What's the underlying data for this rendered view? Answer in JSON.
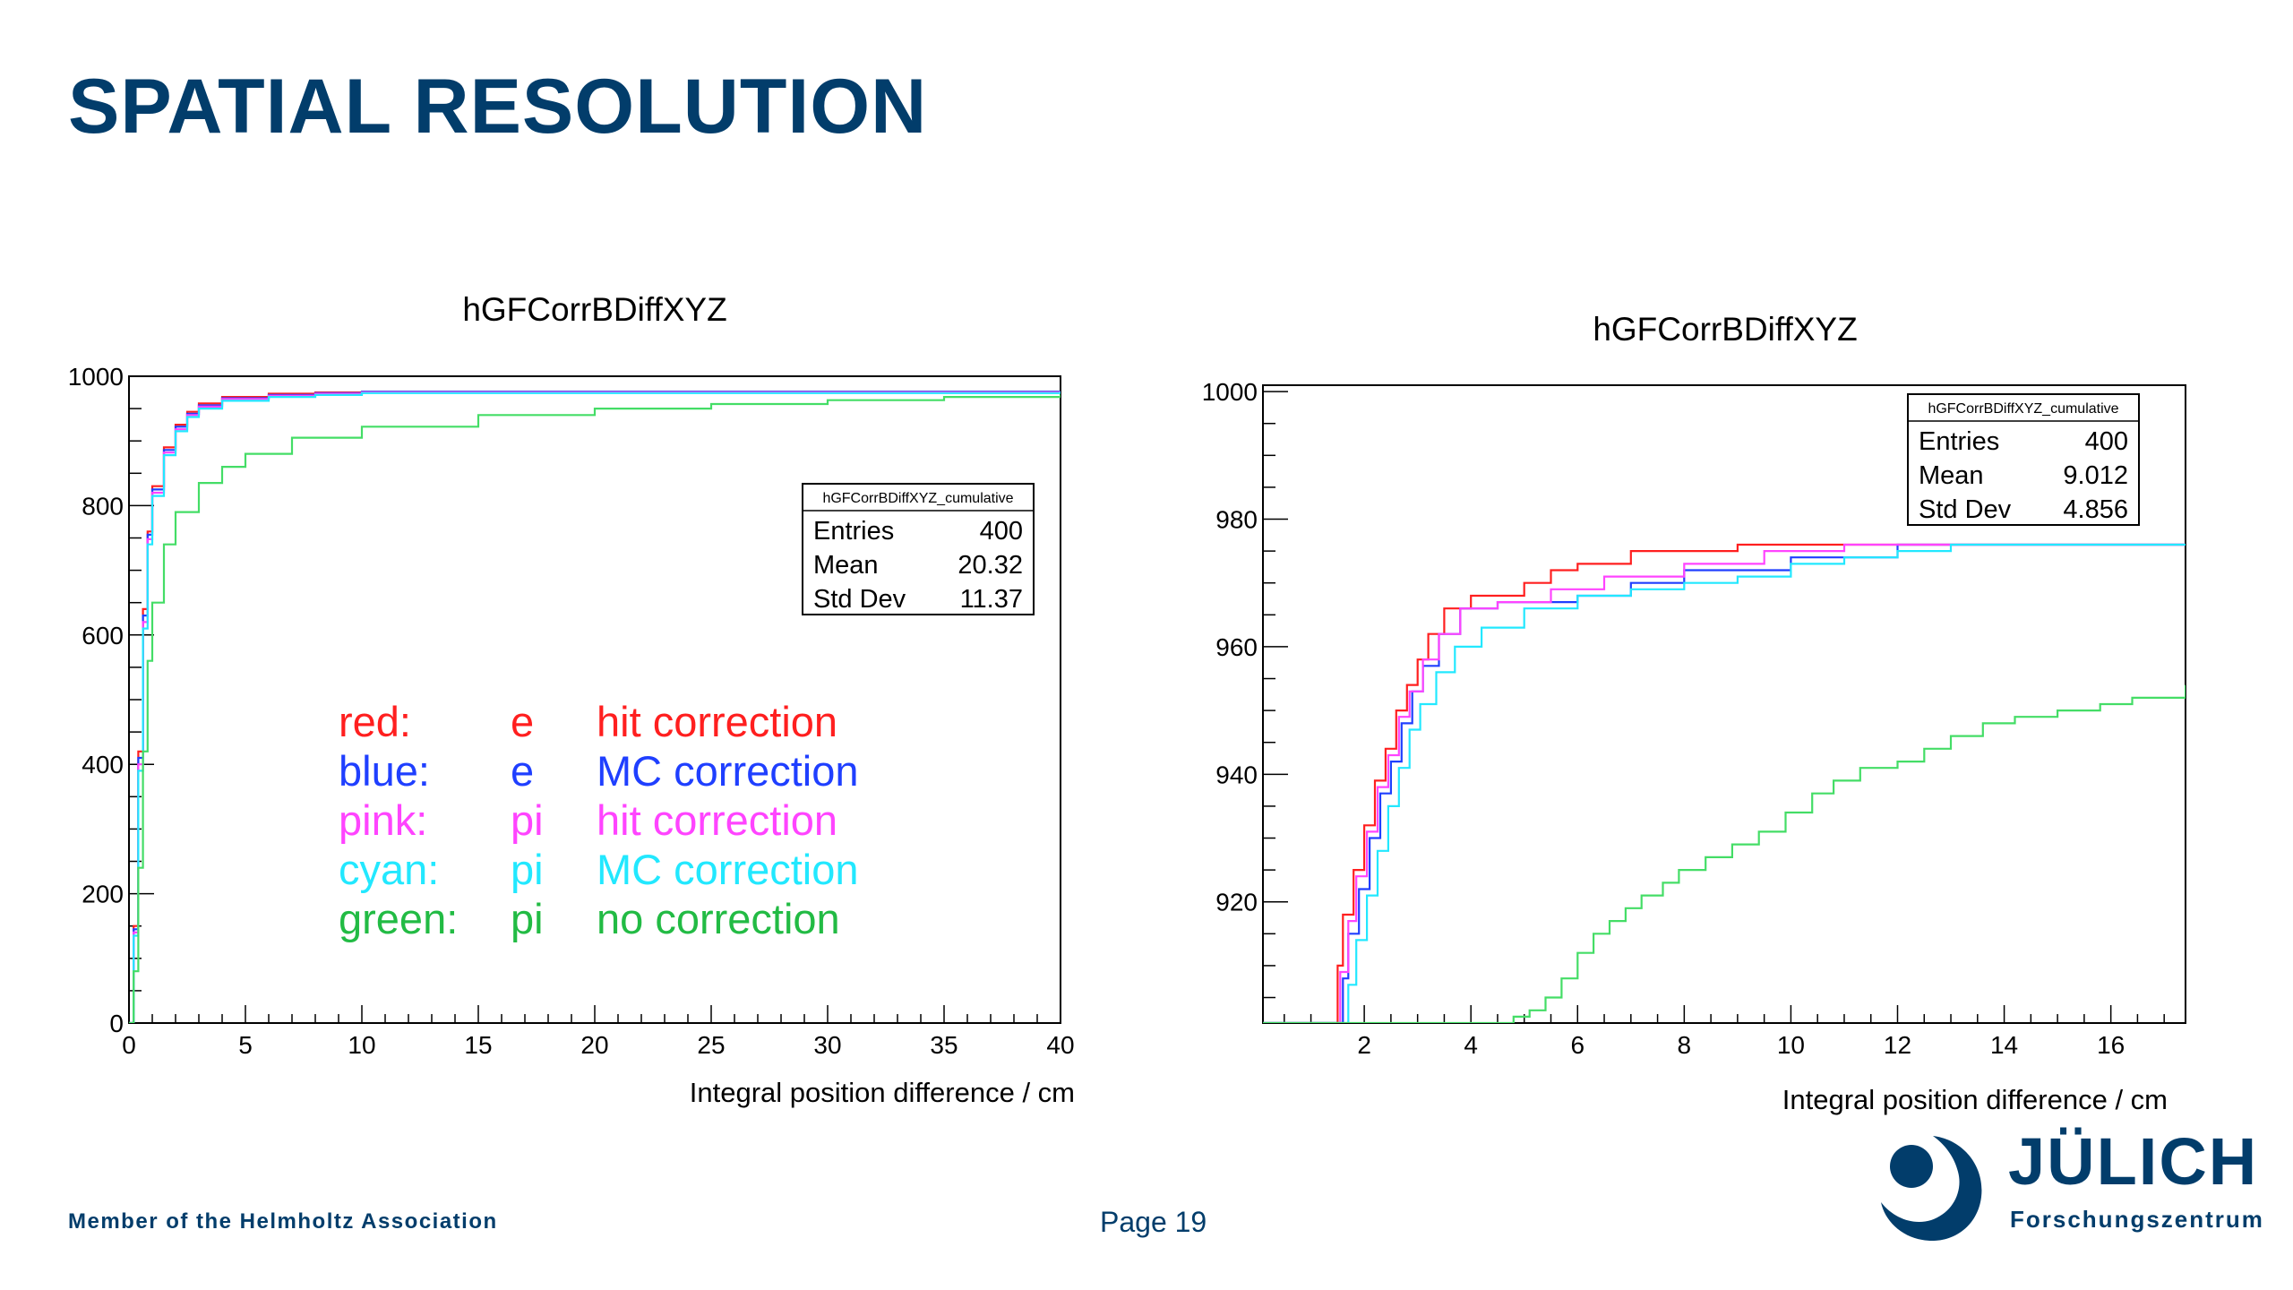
{
  "page": {
    "title": "SPATIAL RESOLUTION",
    "footer": "Member of the Helmholtz Association",
    "page_number": "Page 19",
    "logo": {
      "name": "JÜLICH",
      "subtitle": "Forschungszentrum"
    },
    "colors": {
      "brand": "#023d6b",
      "red": "#ff1f1f",
      "blue": "#1f3fff",
      "pink": "#ff44ff",
      "cyan": "#22ffff",
      "green": "#44dd66"
    }
  },
  "legend": [
    {
      "color_name": "red:",
      "particle": "e",
      "method": "hit correction",
      "color": "#ff1f1f"
    },
    {
      "color_name": "blue:",
      "particle": "e",
      "method": "MC correction",
      "color": "#1f3fff"
    },
    {
      "color_name": "pink:",
      "particle": "pi",
      "method": "hit correction",
      "color": "#ff44ff"
    },
    {
      "color_name": "cyan:",
      "particle": "pi",
      "method": "MC correction",
      "color": "#22e8ff"
    },
    {
      "color_name": "green:",
      "particle": "pi",
      "method": "no correction",
      "color": "#22bb44"
    }
  ],
  "chart_data": [
    {
      "type": "line",
      "title": "hGFCorrBDiffXYZ",
      "xlabel": "Integral position difference / cm",
      "ylabel": "",
      "xlim": [
        0,
        40
      ],
      "ylim": [
        0,
        1000
      ],
      "xticks": [
        "0",
        "5",
        "10",
        "15",
        "20",
        "25",
        "30",
        "35",
        "40"
      ],
      "yticks": [
        "0",
        "200",
        "400",
        "600",
        "800",
        "1000"
      ],
      "stats": {
        "header": "hGFCorrBDiffXYZ_cumulative",
        "rows": [
          {
            "label": "Entries",
            "value": "400"
          },
          {
            "label": "Mean",
            "value": "20.32"
          },
          {
            "label": "Std Dev",
            "value": "11.37"
          }
        ]
      },
      "series": [
        {
          "color": "#ff1f1f",
          "points": [
            [
              0,
              0
            ],
            [
              0.2,
              150
            ],
            [
              0.4,
              420
            ],
            [
              0.6,
              640
            ],
            [
              0.8,
              760
            ],
            [
              1,
              830
            ],
            [
              1.5,
              890
            ],
            [
              2,
              925
            ],
            [
              2.5,
              945
            ],
            [
              3,
              958
            ],
            [
              4,
              968
            ],
            [
              6,
              973
            ],
            [
              8,
              975
            ],
            [
              10,
              976
            ],
            [
              40,
              976
            ]
          ]
        },
        {
          "color": "#1f3fff",
          "points": [
            [
              0,
              0
            ],
            [
              0.2,
              145
            ],
            [
              0.4,
              410
            ],
            [
              0.6,
              630
            ],
            [
              0.8,
              755
            ],
            [
              1,
              825
            ],
            [
              1.5,
              886
            ],
            [
              2,
              922
            ],
            [
              2.5,
              942
            ],
            [
              3,
              955
            ],
            [
              4,
              966
            ],
            [
              6,
              971
            ],
            [
              8,
              974
            ],
            [
              10,
              976
            ],
            [
              40,
              976
            ]
          ]
        },
        {
          "color": "#ff44ff",
          "points": [
            [
              0,
              0
            ],
            [
              0.2,
              140
            ],
            [
              0.4,
              400
            ],
            [
              0.6,
              620
            ],
            [
              0.8,
              748
            ],
            [
              1,
              820
            ],
            [
              1.5,
              882
            ],
            [
              2,
              918
            ],
            [
              2.5,
              940
            ],
            [
              3,
              953
            ],
            [
              4,
              965
            ],
            [
              6,
              970
            ],
            [
              8,
              973
            ],
            [
              10,
              975
            ],
            [
              40,
              976
            ]
          ]
        },
        {
          "color": "#22e8ff",
          "points": [
            [
              0,
              0
            ],
            [
              0.2,
              135
            ],
            [
              0.4,
              390
            ],
            [
              0.6,
              610
            ],
            [
              0.8,
              740
            ],
            [
              1,
              815
            ],
            [
              1.5,
              878
            ],
            [
              2,
              915
            ],
            [
              2.5,
              937
            ],
            [
              3,
              950
            ],
            [
              4,
              962
            ],
            [
              6,
              968
            ],
            [
              8,
              971
            ],
            [
              10,
              974
            ],
            [
              40,
              976
            ]
          ]
        },
        {
          "color": "#44dd66",
          "points": [
            [
              0,
              0
            ],
            [
              0.2,
              80
            ],
            [
              0.4,
              240
            ],
            [
              0.6,
              420
            ],
            [
              0.8,
              560
            ],
            [
              1,
              650
            ],
            [
              1.5,
              740
            ],
            [
              2,
              790
            ],
            [
              3,
              835
            ],
            [
              4,
              860
            ],
            [
              5,
              880
            ],
            [
              7,
              905
            ],
            [
              10,
              922
            ],
            [
              15,
              940
            ],
            [
              20,
              950
            ],
            [
              25,
              957
            ],
            [
              30,
              963
            ],
            [
              35,
              968
            ],
            [
              40,
              972
            ]
          ]
        }
      ]
    },
    {
      "type": "line",
      "title": "hGFCorrBDiffXYZ",
      "xlabel": "Integral position difference / cm",
      "ylabel": "",
      "xlim": [
        0.1,
        17.4
      ],
      "ylim": [
        901,
        1001
      ],
      "xticks": [
        "2",
        "4",
        "6",
        "8",
        "10",
        "12",
        "14",
        "16"
      ],
      "yticks": [
        "920",
        "940",
        "960",
        "980",
        "1000"
      ],
      "stats": {
        "header": "hGFCorrBDiffXYZ_cumulative",
        "rows": [
          {
            "label": "Entries",
            "value": "400"
          },
          {
            "label": "Mean",
            "value": "9.012"
          },
          {
            "label": "Std Dev",
            "value": "4.856"
          }
        ]
      },
      "series": [
        {
          "color": "#ff1f1f",
          "points": [
            [
              0.1,
              901
            ],
            [
              1.4,
              901
            ],
            [
              1.5,
              910
            ],
            [
              1.6,
              918
            ],
            [
              1.8,
              925
            ],
            [
              2,
              932
            ],
            [
              2.2,
              939
            ],
            [
              2.4,
              944
            ],
            [
              2.6,
              950
            ],
            [
              2.8,
              954
            ],
            [
              3,
              958
            ],
            [
              3.2,
              962
            ],
            [
              3.5,
              966
            ],
            [
              4,
              968
            ],
            [
              5,
              970
            ],
            [
              5.5,
              972
            ],
            [
              6,
              973
            ],
            [
              7,
              975
            ],
            [
              8,
              975
            ],
            [
              9,
              976
            ],
            [
              17.4,
              976
            ]
          ]
        },
        {
          "color": "#1f3fff",
          "points": [
            [
              0.1,
              901
            ],
            [
              1.5,
              901
            ],
            [
              1.6,
              908
            ],
            [
              1.7,
              915
            ],
            [
              1.9,
              922
            ],
            [
              2.1,
              930
            ],
            [
              2.3,
              937
            ],
            [
              2.5,
              942
            ],
            [
              2.7,
              948
            ],
            [
              2.9,
              953
            ],
            [
              3.1,
              957
            ],
            [
              3.4,
              962
            ],
            [
              3.8,
              966
            ],
            [
              4.5,
              967
            ],
            [
              6,
              968
            ],
            [
              7,
              970
            ],
            [
              8,
              972
            ],
            [
              10,
              974
            ],
            [
              12,
              976
            ],
            [
              17.4,
              976
            ]
          ]
        },
        {
          "color": "#ff44ff",
          "points": [
            [
              0.1,
              901
            ],
            [
              1.45,
              901
            ],
            [
              1.55,
              909
            ],
            [
              1.7,
              917
            ],
            [
              1.85,
              924
            ],
            [
              2.05,
              931
            ],
            [
              2.25,
              938
            ],
            [
              2.45,
              943
            ],
            [
              2.65,
              949
            ],
            [
              2.85,
              953
            ],
            [
              3.1,
              958
            ],
            [
              3.4,
              962
            ],
            [
              3.8,
              966
            ],
            [
              4.5,
              967
            ],
            [
              5.5,
              969
            ],
            [
              6.5,
              971
            ],
            [
              8,
              973
            ],
            [
              9.5,
              975
            ],
            [
              11,
              976
            ],
            [
              17.4,
              976
            ]
          ]
        },
        {
          "color": "#22e8ff",
          "points": [
            [
              0.1,
              901
            ],
            [
              1.55,
              901
            ],
            [
              1.7,
              907
            ],
            [
              1.85,
              914
            ],
            [
              2.05,
              921
            ],
            [
              2.25,
              928
            ],
            [
              2.45,
              935
            ],
            [
              2.65,
              941
            ],
            [
              2.85,
              947
            ],
            [
              3.05,
              951
            ],
            [
              3.35,
              956
            ],
            [
              3.7,
              960
            ],
            [
              4.2,
              963
            ],
            [
              5,
              966
            ],
            [
              6,
              968
            ],
            [
              7,
              969
            ],
            [
              8,
              970
            ],
            [
              9,
              971
            ],
            [
              10,
              973
            ],
            [
              11,
              974
            ],
            [
              12,
              975
            ],
            [
              13,
              976
            ],
            [
              17.4,
              976
            ]
          ]
        },
        {
          "color": "#44dd66",
          "points": [
            [
              0.1,
              901
            ],
            [
              4.6,
              901
            ],
            [
              4.8,
              902
            ],
            [
              5.1,
              903
            ],
            [
              5.4,
              905
            ],
            [
              5.7,
              908
            ],
            [
              6,
              912
            ],
            [
              6.3,
              915
            ],
            [
              6.6,
              917
            ],
            [
              6.9,
              919
            ],
            [
              7.2,
              921
            ],
            [
              7.6,
              923
            ],
            [
              7.9,
              925
            ],
            [
              8.4,
              927
            ],
            [
              8.9,
              929
            ],
            [
              9.4,
              931
            ],
            [
              9.9,
              934
            ],
            [
              10.4,
              937
            ],
            [
              10.8,
              939
            ],
            [
              11.3,
              941
            ],
            [
              12,
              942
            ],
            [
              12.5,
              944
            ],
            [
              13,
              946
            ],
            [
              13.6,
              948
            ],
            [
              14.2,
              949
            ],
            [
              15,
              950
            ],
            [
              15.8,
              951
            ],
            [
              16.4,
              952
            ],
            [
              17.4,
              954
            ]
          ]
        }
      ]
    }
  ]
}
